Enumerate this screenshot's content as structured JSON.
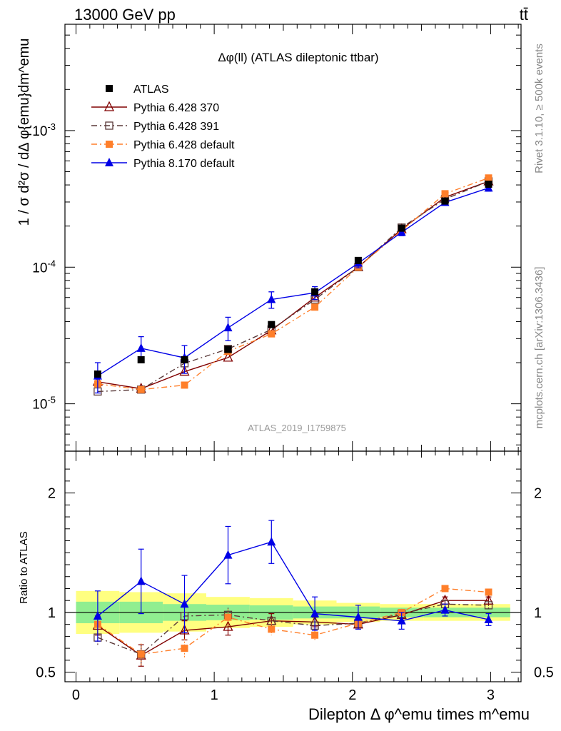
{
  "header": {
    "left": "13000 GeV pp",
    "right": "tt̄"
  },
  "side": {
    "rivet": "Rivet 3.1.10, ≥ 500k events",
    "mcplots": "mcplots.cern.ch [arXiv:1306.3436]"
  },
  "chart_data": {
    "type": "scatter",
    "title": "Δφ(ll) (ATLAS dileptonic ttbar)",
    "watermark": "ATLAS_2019_I1759875",
    "main_panel": {
      "ylabel": "1 / σ  d²σ / dΔ φ{emu}dm^emu",
      "yscale": "log",
      "ylim": [
        4.5e-06,
        0.006
      ],
      "ytick_labels": [
        "10^-5",
        "10^-4",
        "10^-3"
      ]
    },
    "ratio_panel": {
      "ylabel": "Ratio to ATLAS",
      "ylim": [
        0.42,
        2.35
      ],
      "ytick_labels": [
        "0.5",
        "1",
        "2"
      ],
      "band_inner_halfwidth": [
        0.09,
        0.09,
        0.07,
        0.065,
        0.06,
        0.05,
        0.05,
        0.04,
        0.04,
        0.04
      ],
      "band_outer_halfwidth": [
        0.18,
        0.17,
        0.16,
        0.13,
        0.12,
        0.1,
        0.08,
        0.07,
        0.07,
        0.07
      ]
    },
    "xlabel": "Dilepton Δ φ^emu times m^emu",
    "xlim": [
      -0.08,
      3.22
    ],
    "xtick_labels": [
      "0",
      "1",
      "2",
      "3"
    ],
    "x": [
      0.157,
      0.471,
      0.785,
      1.1,
      1.414,
      1.728,
      2.042,
      2.356,
      2.67,
      2.985
    ],
    "series": [
      {
        "name": "ATLAS",
        "color": "#000000",
        "marker": "square-filled",
        "line": "none",
        "values": [
          1.65e-05,
          2.1e-05,
          2.1e-05,
          2.5e-05,
          3.8e-05,
          6.6e-05,
          0.000112,
          0.000193,
          0.000305,
          0.000405
        ]
      },
      {
        "name": "Pythia 6.428 370",
        "color": "#800000",
        "marker": "triangle-open",
        "line": "solid",
        "values": [
          1.45e-05,
          1.29e-05,
          1.72e-05,
          2.18e-05,
          3.45e-05,
          6e-05,
          0.0001,
          0.00019,
          0.000325,
          0.000425
        ],
        "ratio": [
          0.89,
          0.64,
          0.85,
          0.88,
          0.93,
          0.92,
          0.9,
          0.98,
          1.1,
          1.1
        ],
        "ratio_err": [
          0.08,
          0.09,
          0.08,
          0.07,
          0.06,
          0.04,
          0.03,
          0.03,
          0.03,
          0.03
        ]
      },
      {
        "name": "Pythia 6.428 391",
        "color": "#5a3a3a",
        "marker": "square-open",
        "line": "dashdot",
        "values": [
          1.23e-05,
          1.27e-05,
          1.98e-05,
          2.52e-05,
          3.5e-05,
          5.8e-05,
          0.0001,
          0.000195,
          0.000315,
          0.000425
        ],
        "ratio": [
          0.79,
          0.65,
          0.97,
          0.98,
          0.93,
          0.89,
          0.91,
          0.99,
          1.07,
          1.06
        ],
        "ratio_err": [
          0.07,
          0.08,
          0.07,
          0.06,
          0.05,
          0.04,
          0.03,
          0.03,
          0.03,
          0.03
        ]
      },
      {
        "name": "Pythia 6.428 default",
        "color": "#ff7f2a",
        "marker": "square-filled",
        "line": "dashdot",
        "values": [
          1.4e-05,
          1.27e-05,
          1.37e-05,
          2.42e-05,
          3.25e-05,
          5.1e-05,
          0.0001,
          0.000185,
          0.000345,
          0.00045
        ],
        "ratio": [
          0.9,
          0.65,
          0.7,
          0.96,
          0.86,
          0.81,
          0.91,
          1.0,
          1.2,
          1.17
        ],
        "ratio_err": [
          0.08,
          0.09,
          0.08,
          0.07,
          0.05,
          0.04,
          0.03,
          0.03,
          0.03,
          0.03
        ]
      },
      {
        "name": "Pythia 8.170 default",
        "color": "#0000e6",
        "marker": "triangle-filled",
        "line": "solid",
        "values": [
          1.6e-05,
          2.55e-05,
          2.17e-05,
          3.6e-05,
          5.8e-05,
          6.5e-05,
          0.000107,
          0.00018,
          0.000298,
          0.00038
        ],
        "errors": [
          4e-06,
          5.5e-06,
          5e-06,
          7e-06,
          8e-06,
          7e-06,
          8e-06,
          1e-05,
          1.5e-05,
          2e-05
        ],
        "ratio": [
          0.97,
          1.26,
          1.07,
          1.48,
          1.59,
          0.99,
          0.96,
          0.93,
          1.02,
          0.94
        ],
        "ratio_err": [
          0.21,
          0.27,
          0.24,
          0.24,
          0.18,
          0.14,
          0.1,
          0.07,
          0.05,
          0.05
        ]
      }
    ],
    "legend": {
      "position": "top-left"
    }
  }
}
